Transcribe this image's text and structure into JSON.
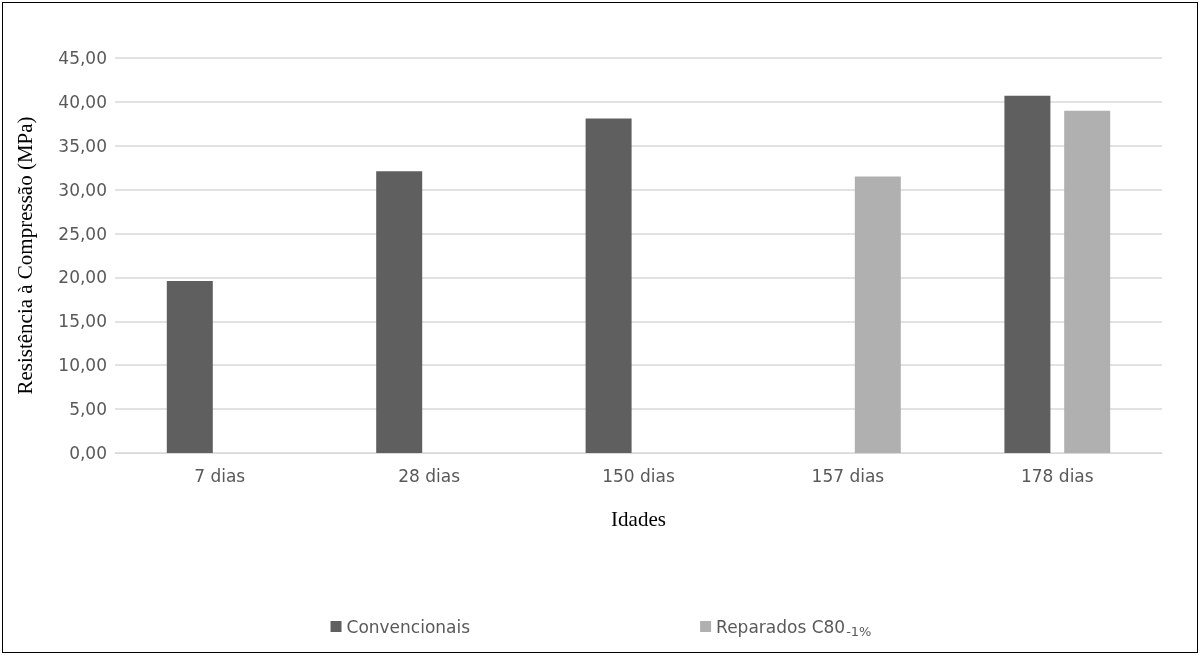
{
  "chart_data": {
    "type": "bar",
    "xlabel": "Idades",
    "ylabel": "Resistência à Compressão (MPa)",
    "categories": [
      "7 dias",
      "28 dias",
      "150 dias",
      "157 dias",
      "178 dias"
    ],
    "series": [
      {
        "name": "Convencionais",
        "color": "#5f5f5f",
        "values": [
          19.6,
          32.1,
          38.1,
          null,
          40.7
        ]
      },
      {
        "name": "Reparados C80$_{-1%}$",
        "color": "#b0b0b0",
        "values": [
          null,
          null,
          null,
          31.5,
          39.0
        ]
      }
    ],
    "ylim": [
      0,
      45
    ],
    "yticks": [
      {
        "value": 0,
        "label": "0,00"
      },
      {
        "value": 5,
        "label": "5,00"
      },
      {
        "value": 10,
        "label": "10,00"
      },
      {
        "value": 15,
        "label": "15,00"
      },
      {
        "value": 20,
        "label": "20,00"
      },
      {
        "value": 25,
        "label": "25,00"
      },
      {
        "value": 30,
        "label": "30,00"
      },
      {
        "value": 35,
        "label": "35,00"
      },
      {
        "value": 40,
        "label": "40,00"
      },
      {
        "value": 45,
        "label": "45,00"
      }
    ],
    "grid": "y",
    "legend": "bottom"
  }
}
